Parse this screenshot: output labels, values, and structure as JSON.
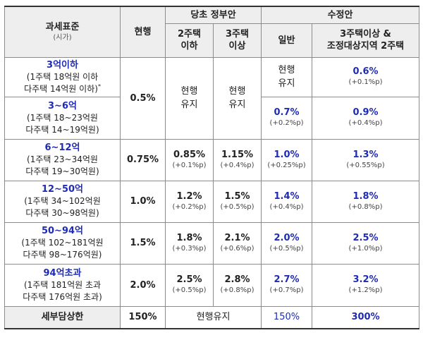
{
  "header": {
    "col1_title": "과세표준",
    "col1_sub": "(시가)",
    "col2": "현행",
    "group_original": "당초 정부안",
    "group_revised": "수정안",
    "orig_two_homes": [
      "2주택",
      "이하"
    ],
    "orig_three_homes": [
      "3주택",
      "이상"
    ],
    "rev_general": "일반",
    "rev_multi": [
      "3주택이상 &",
      "조정대상지역 2주택"
    ]
  },
  "rows": [
    {
      "label": "3억이하",
      "desc": [
        "(1주택 18억원 이하",
        "다주택 14억원 이하)"
      ],
      "desc_mark": "*"
    },
    {
      "label": "3~6억",
      "desc": [
        "(1주택 18~23억원",
        "다주택 14~19억원)"
      ]
    },
    {
      "label": "6~12억",
      "desc": [
        "(1주택 23~34억원",
        "다주택 19~30억원)"
      ],
      "current": "0.75%",
      "orig2": {
        "v": "0.85%",
        "d": "(+0.1%p)"
      },
      "orig3": {
        "v": "1.15%",
        "d": "(+0.4%p)"
      },
      "rev_general": {
        "v": "1.0%",
        "d": "(+0.25%p)"
      },
      "rev_multi": {
        "v": "1.3%",
        "d": "(+0.55%p)"
      }
    },
    {
      "label": "12~50억",
      "desc": [
        "(1주택 34~102억원",
        "다주택 30~98억원)"
      ],
      "current": "1.0%",
      "orig2": {
        "v": "1.2%",
        "d": "(+0.2%p)"
      },
      "orig3": {
        "v": "1.5%",
        "d": "(+0.5%p)"
      },
      "rev_general": {
        "v": "1.4%",
        "d": "(+0.4%p)"
      },
      "rev_multi": {
        "v": "1.8%",
        "d": "(+0.8%p)"
      }
    },
    {
      "label": "50~94억",
      "desc": [
        "(1주택 102~181억원",
        "다주택 98~176억원)"
      ],
      "current": "1.5%",
      "orig2": {
        "v": "1.8%",
        "d": "(+0.3%p)"
      },
      "orig3": {
        "v": "2.1%",
        "d": "(+0.6%p)"
      },
      "rev_general": {
        "v": "2.0%",
        "d": "(+0.5%p)"
      },
      "rev_multi": {
        "v": "2.5%",
        "d": "(+1.0%p)"
      }
    },
    {
      "label": "94억초과",
      "desc": [
        "(1주택 181억원 초과",
        "다주택 176억원 초과)"
      ],
      "current": "2.0%",
      "orig2": {
        "v": "2.5%",
        "d": "(+0.5%p)"
      },
      "orig3": {
        "v": "2.8%",
        "d": "(+0.8%p)"
      },
      "rev_general": {
        "v": "2.7%",
        "d": "(+0.7%p)"
      },
      "rev_multi": {
        "v": "3.2%",
        "d": "(+1.2%p)"
      }
    }
  ],
  "merged_first_two": {
    "current": "0.5%",
    "orig_keep": [
      "현행",
      "유지"
    ],
    "rev_general_row1": [
      "현행",
      "유지"
    ],
    "rev_multi_row1": {
      "v": "0.6%",
      "d": "(+0.1%p)"
    },
    "rev_general_row2": {
      "v": "0.7%",
      "d": "(+0.2%p)"
    },
    "rev_multi_row2": {
      "v": "0.9%",
      "d": "(+0.4%p)"
    }
  },
  "cap_row": {
    "label": "세부담상한",
    "current": "150%",
    "original": "현행유지",
    "rev_general": "150%",
    "rev_multi": "300%"
  }
}
